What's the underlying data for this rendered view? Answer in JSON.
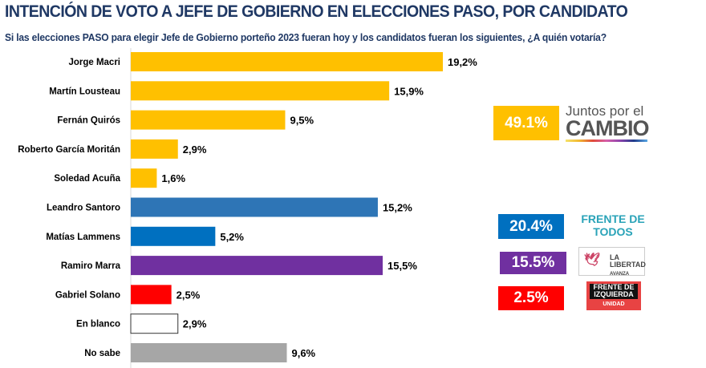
{
  "title": "INTENCIÓN DE VOTO A JEFE DE GOBIERNO EN ELECCIONES PASO, POR CANDIDATO",
  "subtitle": "Si las elecciones PASO para elegir Jefe de Gobierno porteño 2023 fueran hoy y los candidatos fueran los siguientes, ¿A quién votaría?",
  "chart_data": {
    "type": "bar",
    "orientation": "horizontal",
    "categories": [
      "Jorge Macri",
      "Martín Lousteau",
      "Fernán Quirós",
      "Roberto García Moritán",
      "Soledad Acuña",
      "Leandro Santoro",
      "Matías Lammens",
      "Ramiro Marra",
      "Gabriel Solano",
      "En blanco",
      "No sabe"
    ],
    "values": [
      19.2,
      15.9,
      9.5,
      2.9,
      1.6,
      15.2,
      5.2,
      15.5,
      2.5,
      2.9,
      9.6
    ],
    "labels": [
      "19,2%",
      "15,9%",
      "9,5%",
      "2,9%",
      "1,6%",
      "15,2%",
      "5,2%",
      "15,5%",
      "2,5%",
      "2,9%",
      "9,6%"
    ],
    "colors": [
      "#FFC000",
      "#FFC000",
      "#FFC000",
      "#FFC000",
      "#FFC000",
      "#2E75B6",
      "#0070C0",
      "#7030A0",
      "#FF0000",
      "#FFFFFF",
      "#A6A6A6"
    ],
    "grid": false
  },
  "totals": [
    {
      "value": "49.1%",
      "party": "Juntos por el CAMBIO",
      "color": "#FFC000"
    },
    {
      "value": "20.4%",
      "party": "FRENTE DE TODOS",
      "color": "#0070C0"
    },
    {
      "value": "15.5%",
      "party": "LA LIBERTAD AVANZA",
      "color": "#7030A0"
    },
    {
      "value": "2.5%",
      "party": "FRENTE DE IZQUIERDA UNIDAD",
      "color": "#FF0000"
    }
  ]
}
